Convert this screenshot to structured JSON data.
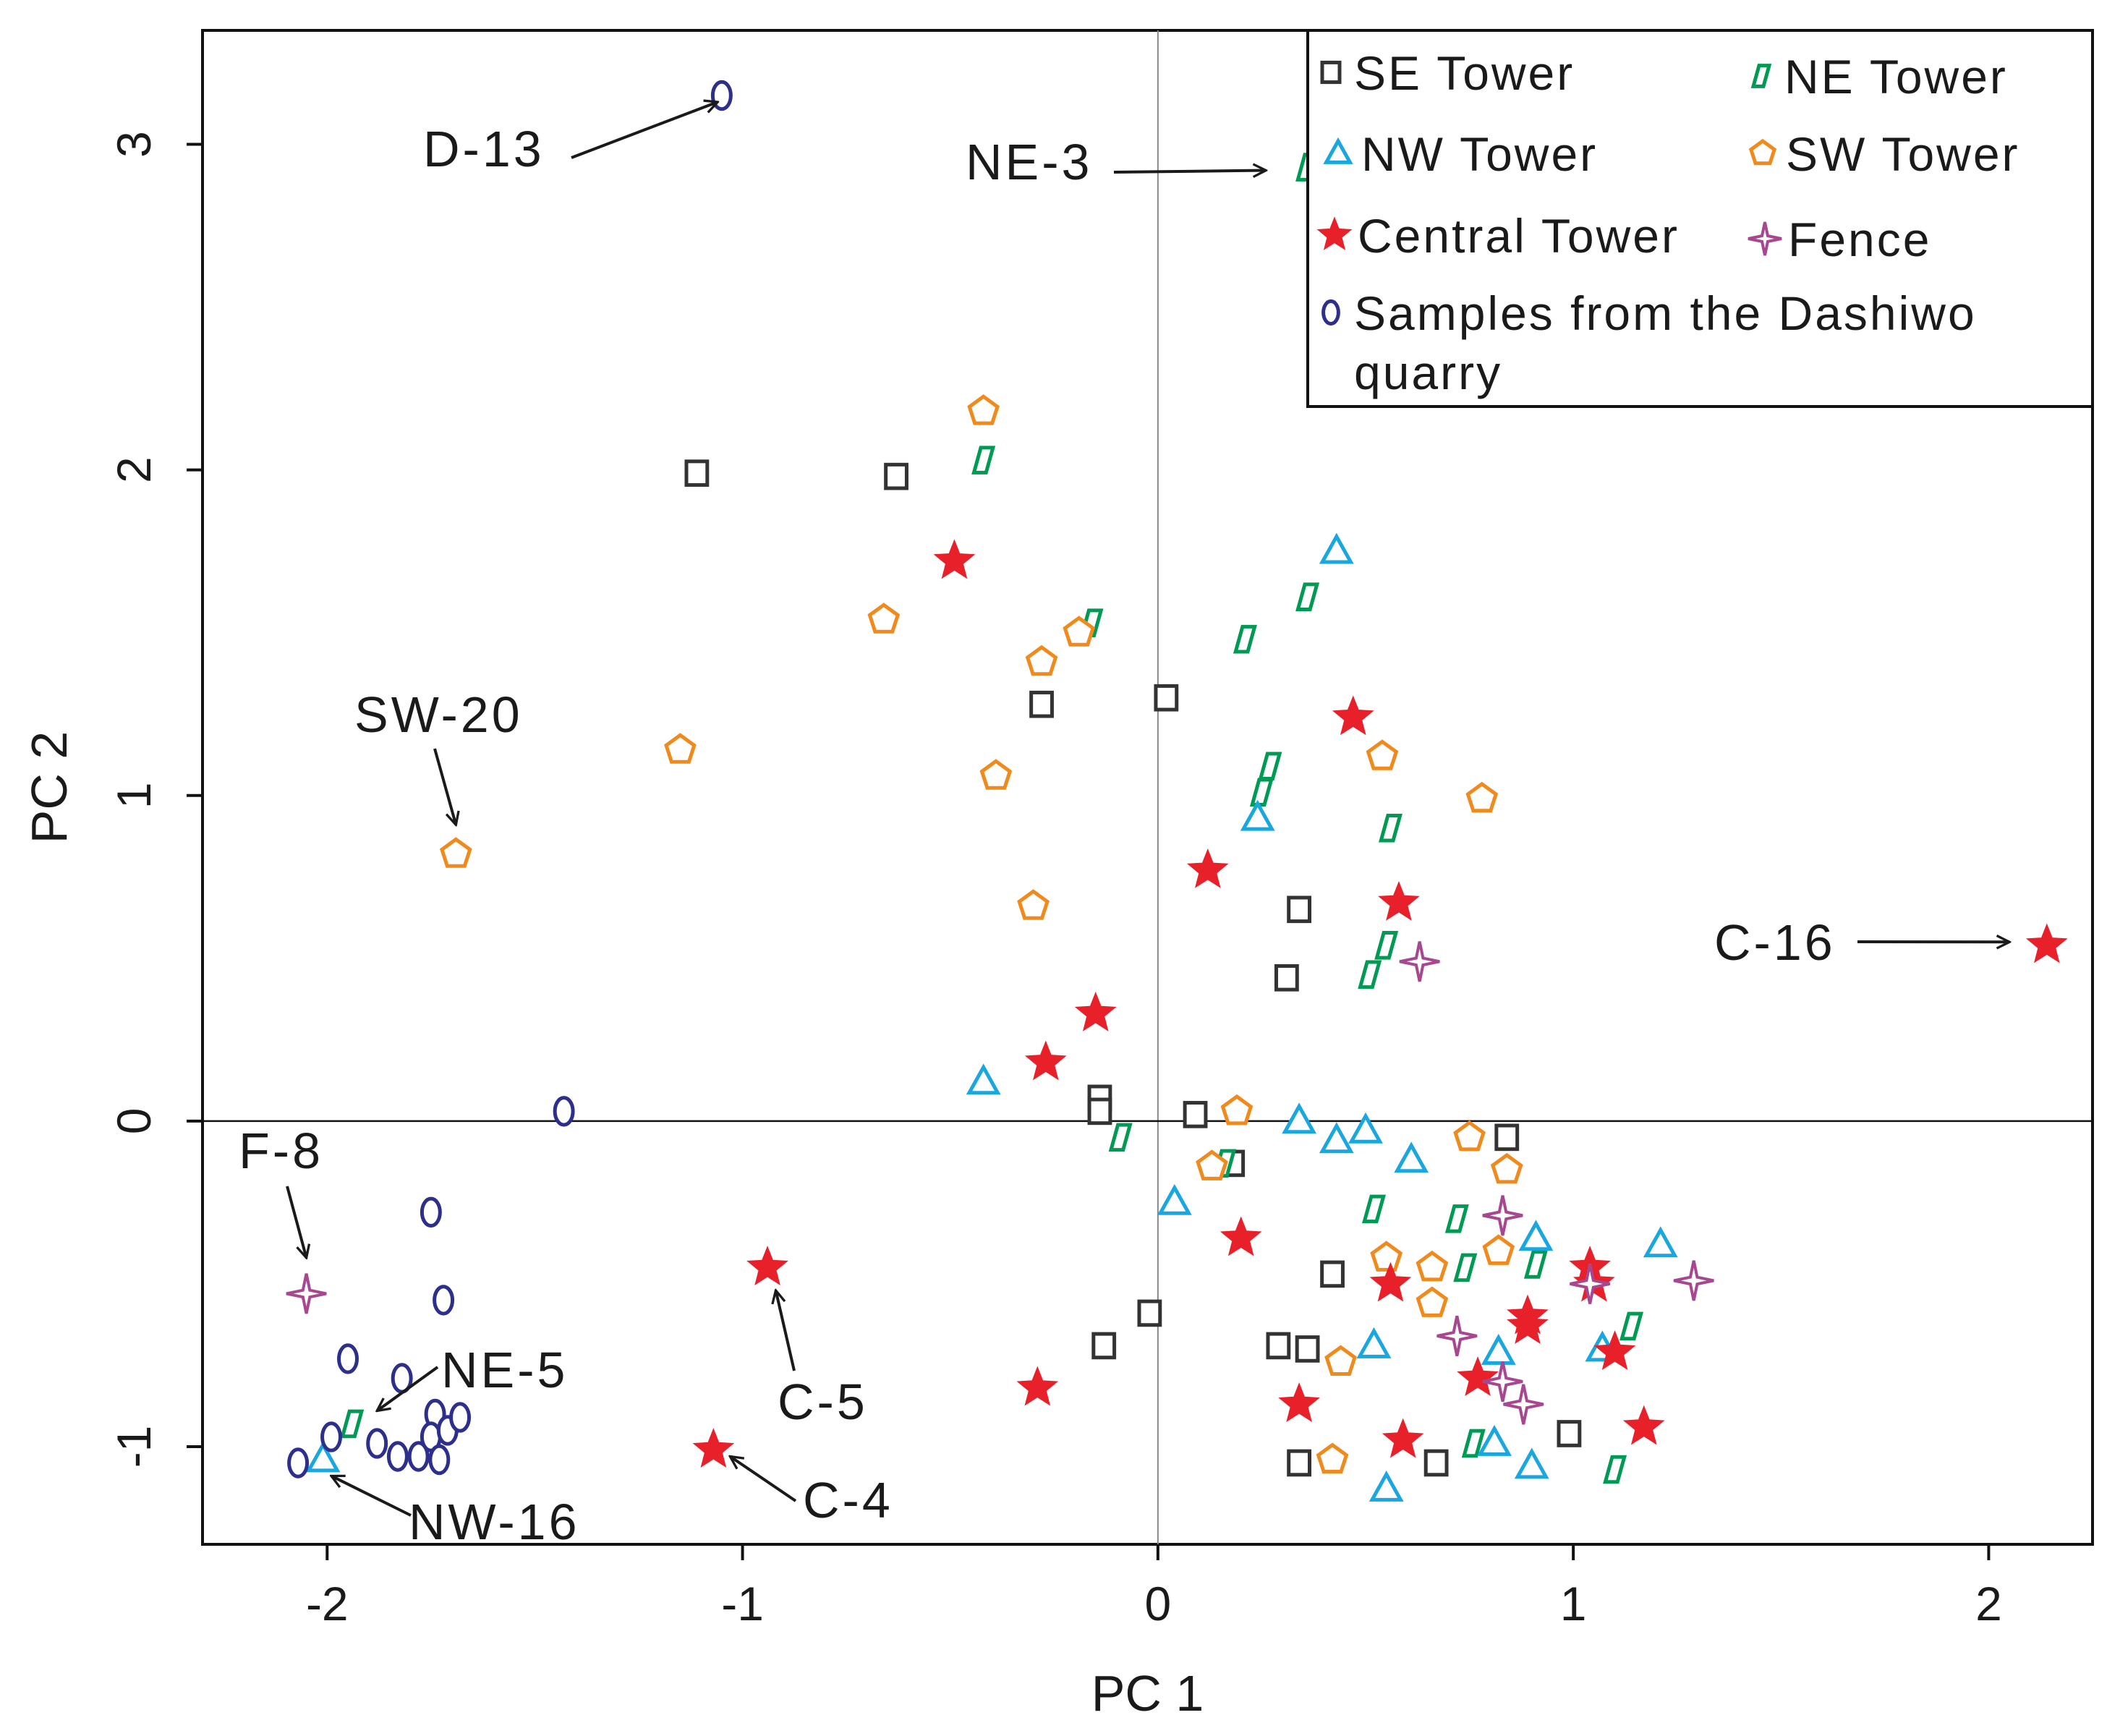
{
  "chart_data": {
    "type": "scatter",
    "title": "",
    "xlabel": "PC 1",
    "ylabel": "PC 2",
    "xlim": [
      -2.3,
      2.25
    ],
    "ylim": [
      -1.3,
      3.35
    ],
    "xticks": [
      -2,
      -1,
      0,
      1,
      2
    ],
    "yticks": [
      -1,
      0,
      1,
      2,
      3
    ],
    "xtick_labels": [
      "-2",
      "-1",
      "0",
      "1",
      "2"
    ],
    "ytick_labels": [
      "-1",
      "0",
      "1",
      "2",
      "3"
    ],
    "reference_lines": {
      "x": 0,
      "y": 0
    },
    "legend_position": "top-right",
    "series": [
      {
        "name": "SE Tower",
        "marker": "square",
        "color": "#333333",
        "points": [
          [
            -1.11,
            1.99
          ],
          [
            -0.63,
            1.98
          ],
          [
            -0.28,
            1.28
          ],
          [
            0.02,
            1.3
          ],
          [
            0.34,
            0.65
          ],
          [
            0.31,
            0.44
          ],
          [
            -0.14,
            0.07
          ],
          [
            -0.14,
            0.03
          ],
          [
            0.09,
            0.02
          ],
          [
            0.18,
            -0.13
          ],
          [
            0.84,
            -0.05
          ],
          [
            0.42,
            -0.47
          ],
          [
            -0.02,
            -0.59
          ],
          [
            -0.13,
            -0.69
          ],
          [
            0.29,
            -0.69
          ],
          [
            0.36,
            -0.7
          ],
          [
            0.34,
            -1.05
          ],
          [
            0.67,
            -1.05
          ],
          [
            0.99,
            -0.96
          ]
        ]
      },
      {
        "name": "NE Tower",
        "marker": "parallelogram",
        "color": "#009a55",
        "points": [
          [
            0.36,
            2.93
          ],
          [
            -0.42,
            2.03
          ],
          [
            -0.16,
            1.53
          ],
          [
            0.21,
            1.48
          ],
          [
            0.36,
            1.61
          ],
          [
            0.27,
            1.09
          ],
          [
            0.25,
            1.01
          ],
          [
            0.56,
            0.9
          ],
          [
            0.55,
            0.54
          ],
          [
            0.51,
            0.45
          ],
          [
            -0.09,
            -0.05
          ],
          [
            0.16,
            -0.13
          ],
          [
            0.52,
            -0.27
          ],
          [
            0.72,
            -0.3
          ],
          [
            0.74,
            -0.45
          ],
          [
            0.91,
            -0.44
          ],
          [
            1.14,
            -0.63
          ],
          [
            0.76,
            -0.99
          ],
          [
            1.1,
            -1.07
          ],
          [
            -1.94,
            -0.93
          ]
        ]
      },
      {
        "name": "NW Tower",
        "marker": "triangle",
        "color": "#1aa6df",
        "points": [
          [
            0.43,
            1.75
          ],
          [
            0.24,
            0.93
          ],
          [
            -0.42,
            0.12
          ],
          [
            0.34,
            0.0
          ],
          [
            0.43,
            -0.06
          ],
          [
            0.5,
            -0.03
          ],
          [
            0.61,
            -0.12
          ],
          [
            0.04,
            -0.25
          ],
          [
            0.91,
            -0.36
          ],
          [
            1.21,
            -0.38
          ],
          [
            0.52,
            -0.69
          ],
          [
            0.82,
            -0.71
          ],
          [
            1.07,
            -0.7
          ],
          [
            0.81,
            -0.99
          ],
          [
            0.9,
            -1.06
          ],
          [
            0.55,
            -1.13
          ],
          [
            -2.01,
            -1.04
          ]
        ]
      },
      {
        "name": "SW Tower",
        "marker": "pentagon",
        "color": "#f08a1c",
        "points": [
          [
            -0.42,
            2.18
          ],
          [
            -0.66,
            1.54
          ],
          [
            -0.19,
            1.5
          ],
          [
            -0.28,
            1.41
          ],
          [
            -1.15,
            1.14
          ],
          [
            -0.39,
            1.06
          ],
          [
            -0.3,
            0.66
          ],
          [
            -1.69,
            0.82
          ],
          [
            0.54,
            1.12
          ],
          [
            0.78,
            0.99
          ],
          [
            0.19,
            0.03
          ],
          [
            0.13,
            -0.14
          ],
          [
            0.75,
            -0.05
          ],
          [
            0.84,
            -0.15
          ],
          [
            0.55,
            -0.42
          ],
          [
            0.66,
            -0.45
          ],
          [
            0.66,
            -0.56
          ],
          [
            0.82,
            -0.4
          ],
          [
            0.44,
            -0.74
          ],
          [
            0.42,
            -1.04
          ]
        ]
      },
      {
        "name": "Central Tower",
        "marker": "star",
        "color": "#e8202a",
        "points": [
          [
            -0.49,
            1.72
          ],
          [
            0.47,
            1.24
          ],
          [
            0.12,
            0.77
          ],
          [
            0.58,
            0.67
          ],
          [
            -0.15,
            0.33
          ],
          [
            -0.27,
            0.18
          ],
          [
            0.2,
            -0.36
          ],
          [
            0.56,
            -0.5
          ],
          [
            1.04,
            -0.45
          ],
          [
            1.05,
            -0.5
          ],
          [
            0.89,
            -0.6
          ],
          [
            0.89,
            -0.63
          ],
          [
            1.1,
            -0.71
          ],
          [
            0.77,
            -0.79
          ],
          [
            0.34,
            -0.87
          ],
          [
            0.59,
            -0.98
          ],
          [
            1.17,
            -0.94
          ],
          [
            -0.29,
            -0.82
          ],
          [
            -0.94,
            -0.45
          ],
          [
            -1.07,
            -1.01
          ],
          [
            2.14,
            0.54
          ]
        ]
      },
      {
        "name": "Fence",
        "marker": "cross-star",
        "color": "#a6478f",
        "points": [
          [
            0.63,
            0.49
          ],
          [
            0.83,
            -0.29
          ],
          [
            1.04,
            -0.5
          ],
          [
            1.29,
            -0.49
          ],
          [
            0.72,
            -0.66
          ],
          [
            0.83,
            -0.8
          ],
          [
            0.88,
            -0.87
          ],
          [
            -2.05,
            -0.53
          ]
        ]
      },
      {
        "name": "Samples from the Dashiwo quarry",
        "legend_label_lines": [
          "Samples from the Dashiwo",
          "quarry"
        ],
        "marker": "ellipse",
        "color": "#2c2f8c",
        "points": [
          [
            -1.05,
            3.15
          ],
          [
            -1.43,
            0.03
          ],
          [
            -1.75,
            -0.28
          ],
          [
            -1.72,
            -0.55
          ],
          [
            -1.95,
            -0.73
          ],
          [
            -1.82,
            -0.79
          ],
          [
            -1.99,
            -0.97
          ],
          [
            -1.88,
            -0.99
          ],
          [
            -1.83,
            -1.03
          ],
          [
            -1.78,
            -1.03
          ],
          [
            -1.74,
            -0.9
          ],
          [
            -1.75,
            -0.97
          ],
          [
            -1.71,
            -0.95
          ],
          [
            -1.68,
            -0.91
          ],
          [
            -1.73,
            -1.04
          ],
          [
            -2.07,
            -1.05
          ]
        ]
      }
    ],
    "annotations": [
      {
        "label": "D-13",
        "target": [
          -1.06,
          3.13
        ]
      },
      {
        "label": "NE-3",
        "target": [
          0.26,
          2.92
        ]
      },
      {
        "label": "SW-20",
        "target": [
          -1.69,
          0.91
        ]
      },
      {
        "label": "C-16",
        "target": [
          2.05,
          0.55
        ]
      },
      {
        "label": "F-8",
        "target": [
          -2.05,
          -0.42
        ]
      },
      {
        "label": "NE-5",
        "target": [
          -1.88,
          -0.89
        ]
      },
      {
        "label": "C-5",
        "target": [
          -0.92,
          -0.52
        ]
      },
      {
        "label": "C-4",
        "target": [
          -1.03,
          -1.03
        ]
      },
      {
        "label": "NW-16",
        "target": [
          -1.99,
          -1.09
        ]
      }
    ]
  }
}
